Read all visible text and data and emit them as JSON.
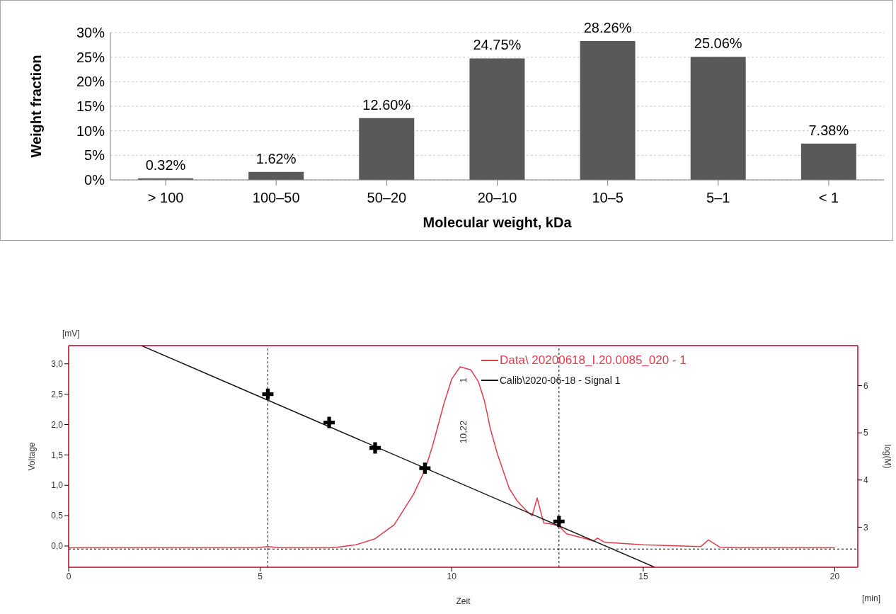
{
  "chart_data": [
    {
      "type": "bar",
      "xlabel": "Molecular weight, kDa",
      "ylabel": "Weight fraction",
      "categories": [
        "> 100",
        "100–50",
        "50–20",
        "20–10",
        "10–5",
        "5–1",
        "< 1"
      ],
      "values": [
        0.32,
        1.62,
        12.6,
        24.75,
        28.26,
        25.06,
        7.38
      ],
      "value_labels": [
        "0.32%",
        "1.62%",
        "12.60%",
        "24.75%",
        "28.26%",
        "25.06%",
        "7.38%"
      ],
      "color": "#595959",
      "ylim": [
        0,
        30
      ],
      "yticks": [
        {
          "value": 0,
          "label": "0%"
        },
        {
          "value": 5,
          "label": "5%"
        },
        {
          "value": 10,
          "label": "10%"
        },
        {
          "value": 15,
          "label": "15%"
        },
        {
          "value": 20,
          "label": "20%"
        },
        {
          "value": 25,
          "label": "25%"
        },
        {
          "value": 30,
          "label": "30%"
        }
      ],
      "grid": "y"
    },
    {
      "type": "line",
      "xlabel": "Zeit",
      "ylabel": "Voltage",
      "y2label": "log(M)",
      "xlim": [
        0,
        20.6
      ],
      "xticks": [
        0,
        5,
        10,
        15,
        20
      ],
      "ylim": [
        -0.35,
        3.3
      ],
      "yticks": [
        {
          "value": 0,
          "label": "0,0"
        },
        {
          "value": 0.5,
          "label": "0,5"
        },
        {
          "value": 1,
          "label": "1,0"
        },
        {
          "value": 1.5,
          "label": "1,5"
        },
        {
          "value": 2,
          "label": "2,0"
        },
        {
          "value": 2.5,
          "label": "2,5"
        },
        {
          "value": 3,
          "label": "3,0"
        }
      ],
      "y2lim": [
        2.15,
        6.85
      ],
      "y2ticks": [
        3,
        4,
        5,
        6
      ],
      "legend": "top right",
      "grid": false,
      "annotations": [
        "[mV]",
        "[min]",
        "10,22",
        "1"
      ],
      "ref_lines": [
        {
          "axis": "x",
          "value": 5.2,
          "color": "#000000",
          "line_style": "dotted"
        },
        {
          "axis": "x",
          "value": 12.8,
          "color": "#000000",
          "line_style": "dotted"
        },
        {
          "axis": "y",
          "value": -0.05,
          "color": "#000000",
          "line_style": "dotted"
        }
      ],
      "series": [
        {
          "name": "Data\\ 20200618_I.20.0085_020 - 1",
          "type": "line",
          "color": "#e03c4c",
          "marker": "none",
          "x": [
            0,
            4.9,
            5.2,
            5.5,
            6.8,
            7.0,
            7.5,
            8.0,
            8.5,
            9.0,
            9.3,
            9.5,
            9.8,
            10.0,
            10.22,
            10.5,
            10.7,
            10.85,
            10.92,
            11.0,
            11.2,
            11.5,
            11.7,
            11.8,
            12.0,
            12.1,
            12.23,
            12.4,
            12.6,
            12.8,
            13.0,
            13.5,
            13.7,
            13.8,
            14.0,
            15.0,
            16.0,
            16.5,
            16.7,
            17.0,
            17.5,
            20.0
          ],
          "values": [
            -0.03,
            -0.03,
            -0.01,
            -0.03,
            -0.03,
            -0.02,
            0.02,
            0.12,
            0.35,
            0.85,
            1.25,
            1.65,
            2.35,
            2.75,
            2.95,
            2.9,
            2.7,
            2.4,
            2.2,
            1.95,
            1.5,
            0.95,
            0.75,
            0.68,
            0.55,
            0.5,
            0.79,
            0.38,
            0.36,
            0.33,
            0.2,
            0.12,
            0.08,
            0.13,
            0.06,
            0.02,
            0.0,
            -0.01,
            0.1,
            -0.02,
            -0.03,
            -0.03
          ]
        },
        {
          "name": "Calib\\2020-06-18 - Signal 1",
          "type": "line",
          "axis": "y2",
          "color": "#1a1a1a",
          "marker": "none",
          "x": [
            1.9,
            15.3
          ],
          "values": [
            6.85,
            2.15
          ]
        },
        {
          "type": "scatter",
          "axis": "y2",
          "color": "#000000",
          "marker": "cross",
          "x": [
            5.2,
            6.8,
            8.0,
            9.3,
            12.8
          ],
          "values": [
            5.82,
            5.22,
            4.68,
            4.25,
            3.12
          ]
        }
      ]
    }
  ]
}
